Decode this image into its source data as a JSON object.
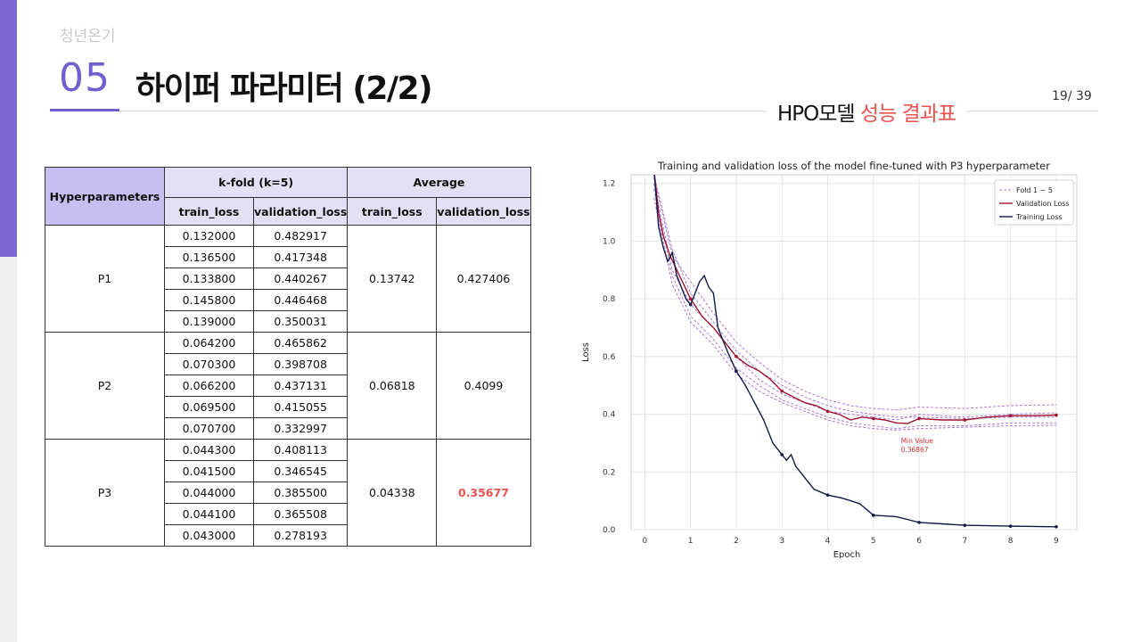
{
  "header": {
    "brand": "청년온기",
    "section_number": "05",
    "section_title": "하이퍼 파라미터 (2/2)",
    "subtitle_prefix": "HPO모델 ",
    "subtitle_highlight": "성능 결과표",
    "page_number": "19/ 39"
  },
  "colors": {
    "accent_purple": "#6f5fcf",
    "accent_red": "#e8534f",
    "table_header": "#e3e0f6",
    "table_header_dark": "#c7bff0"
  },
  "table": {
    "col_hyperparameters": "Hyperparameters",
    "col_kfold": "k-fold (k=5)",
    "col_average": "Average",
    "sub_headers": [
      "train_loss",
      "validation_loss",
      "train_loss",
      "validation_loss"
    ],
    "groups": [
      {
        "name": "P1",
        "rows": [
          [
            "0.132000",
            "0.482917"
          ],
          [
            "0.136500",
            "0.417348"
          ],
          [
            "0.133800",
            "0.440267"
          ],
          [
            "0.145800",
            "0.446468"
          ],
          [
            "0.139000",
            "0.350031"
          ]
        ],
        "avg_train": "0.13742",
        "avg_val": "0.427406"
      },
      {
        "name": "P2",
        "rows": [
          [
            "0.064200",
            "0.465862"
          ],
          [
            "0.070300",
            "0.398708"
          ],
          [
            "0.066200",
            "0.437131"
          ],
          [
            "0.069500",
            "0.415055"
          ],
          [
            "0.070700",
            "0.332997"
          ]
        ],
        "avg_train": "0.06818",
        "avg_val": "0.4099"
      },
      {
        "name": "P3",
        "rows": [
          [
            "0.044300",
            "0.408113"
          ],
          [
            "0.041500",
            "0.346545"
          ],
          [
            "0.044000",
            "0.385500"
          ],
          [
            "0.044100",
            "0.365508"
          ],
          [
            "0.043000",
            "0.278193"
          ]
        ],
        "avg_train": "0.04338",
        "avg_val": "0.35677"
      }
    ]
  },
  "chart_data": {
    "type": "line",
    "title": "Training and validation loss of the model fine-tuned with P3 hyperparameter",
    "xlabel": "Epoch",
    "ylabel": "Loss",
    "xlim": [
      -0.3,
      9.45
    ],
    "ylim": [
      0,
      1.23
    ],
    "xticks": [
      "0",
      "1",
      "2",
      "3",
      "4",
      "5",
      "6",
      "7",
      "8",
      "9"
    ],
    "yticks": [
      "0.0",
      "0.2",
      "0.4",
      "0.6",
      "0.8",
      "1.0",
      "1.2"
    ],
    "grid": true,
    "legend_position": "top-right",
    "legend": [
      "Fold 1 ~ 5",
      "Validation Loss",
      "Training Loss"
    ],
    "annotation": {
      "line1": "Min Value",
      "line2": "0.36867",
      "x": 5.6,
      "y": 0.3
    },
    "series": [
      {
        "name": "Validation Loss",
        "color": "#a0122f",
        "x": [
          0.2,
          0.3,
          0.4,
          0.55,
          0.7,
          0.85,
          1.0,
          1.25,
          1.5,
          1.75,
          2.0,
          2.25,
          2.5,
          2.75,
          3.0,
          3.25,
          3.5,
          3.75,
          4.0,
          4.25,
          4.5,
          4.75,
          5.0,
          5.25,
          5.5,
          5.75,
          6.0,
          6.5,
          7.0,
          7.5,
          8.0,
          8.5,
          9.0
        ],
        "y": [
          1.25,
          1.1,
          1.02,
          0.95,
          0.9,
          0.85,
          0.8,
          0.74,
          0.7,
          0.65,
          0.6,
          0.57,
          0.55,
          0.52,
          0.48,
          0.46,
          0.44,
          0.43,
          0.41,
          0.4,
          0.38,
          0.39,
          0.385,
          0.38,
          0.37,
          0.368,
          0.385,
          0.38,
          0.38,
          0.39,
          0.395,
          0.395,
          0.397
        ]
      },
      {
        "name": "Training Loss",
        "color": "#131846",
        "x": [
          0.2,
          0.3,
          0.4,
          0.5,
          0.6,
          0.7,
          0.8,
          0.9,
          1.0,
          1.1,
          1.2,
          1.3,
          1.4,
          1.5,
          1.6,
          1.8,
          2.0,
          2.2,
          2.4,
          2.6,
          2.8,
          3.0,
          3.1,
          3.2,
          3.3,
          3.5,
          3.7,
          4.0,
          4.3,
          4.5,
          4.7,
          5.0,
          5.5,
          6.0,
          6.5,
          7.0,
          8.0,
          9.0
        ],
        "y": [
          1.25,
          1.05,
          0.98,
          0.93,
          0.96,
          0.88,
          0.84,
          0.8,
          0.78,
          0.82,
          0.86,
          0.88,
          0.84,
          0.82,
          0.7,
          0.62,
          0.55,
          0.5,
          0.44,
          0.38,
          0.3,
          0.26,
          0.24,
          0.26,
          0.22,
          0.18,
          0.14,
          0.12,
          0.11,
          0.1,
          0.09,
          0.05,
          0.045,
          0.025,
          0.02,
          0.015,
          0.012,
          0.01
        ]
      },
      {
        "name": "Fold 1",
        "color": "#a97ad0",
        "x": [
          0.2,
          0.6,
          1.0,
          1.5,
          2.0,
          2.5,
          3.0,
          3.5,
          4.0,
          4.5,
          5.0,
          5.5,
          6.0,
          7.0,
          8.0,
          9.0
        ],
        "y": [
          1.22,
          0.95,
          0.86,
          0.75,
          0.65,
          0.58,
          0.52,
          0.48,
          0.45,
          0.43,
          0.42,
          0.415,
          0.425,
          0.42,
          0.43,
          0.433
        ]
      },
      {
        "name": "Fold 2",
        "color": "#a97ad0",
        "x": [
          0.2,
          0.6,
          1.0,
          1.5,
          2.0,
          2.5,
          3.0,
          3.5,
          4.0,
          4.5,
          5.0,
          5.5,
          6.0,
          7.0,
          8.0,
          9.0
        ],
        "y": [
          1.2,
          0.9,
          0.78,
          0.7,
          0.6,
          0.52,
          0.47,
          0.44,
          0.41,
          0.4,
          0.39,
          0.38,
          0.4,
          0.39,
          0.4,
          0.405
        ]
      },
      {
        "name": "Fold 3",
        "color": "#a97ad0",
        "x": [
          0.2,
          0.6,
          1.0,
          1.5,
          2.0,
          2.5,
          3.0,
          3.5,
          4.0,
          4.5,
          5.0,
          5.5,
          6.0,
          7.0,
          8.0,
          9.0
        ],
        "y": [
          1.18,
          0.88,
          0.74,
          0.66,
          0.56,
          0.5,
          0.45,
          0.42,
          0.39,
          0.37,
          0.36,
          0.35,
          0.36,
          0.36,
          0.37,
          0.37
        ]
      },
      {
        "name": "Fold 4",
        "color": "#a97ad0",
        "x": [
          0.2,
          0.6,
          1.0,
          1.5,
          2.0,
          2.5,
          3.0,
          3.5,
          4.0,
          4.5,
          5.0,
          5.5,
          6.0,
          7.0,
          8.0,
          9.0
        ],
        "y": [
          1.23,
          0.97,
          0.82,
          0.72,
          0.62,
          0.55,
          0.5,
          0.46,
          0.43,
          0.41,
          0.4,
          0.39,
          0.39,
          0.385,
          0.39,
          0.39
        ]
      },
      {
        "name": "Fold 5",
        "color": "#a97ad0",
        "x": [
          0.2,
          0.6,
          1.0,
          1.5,
          2.0,
          2.5,
          3.0,
          3.5,
          4.0,
          4.5,
          5.0,
          5.5,
          6.0,
          7.0,
          8.0,
          9.0
        ],
        "y": [
          1.15,
          0.85,
          0.72,
          0.64,
          0.54,
          0.48,
          0.44,
          0.41,
          0.38,
          0.36,
          0.35,
          0.345,
          0.35,
          0.355,
          0.36,
          0.362
        ]
      }
    ]
  }
}
